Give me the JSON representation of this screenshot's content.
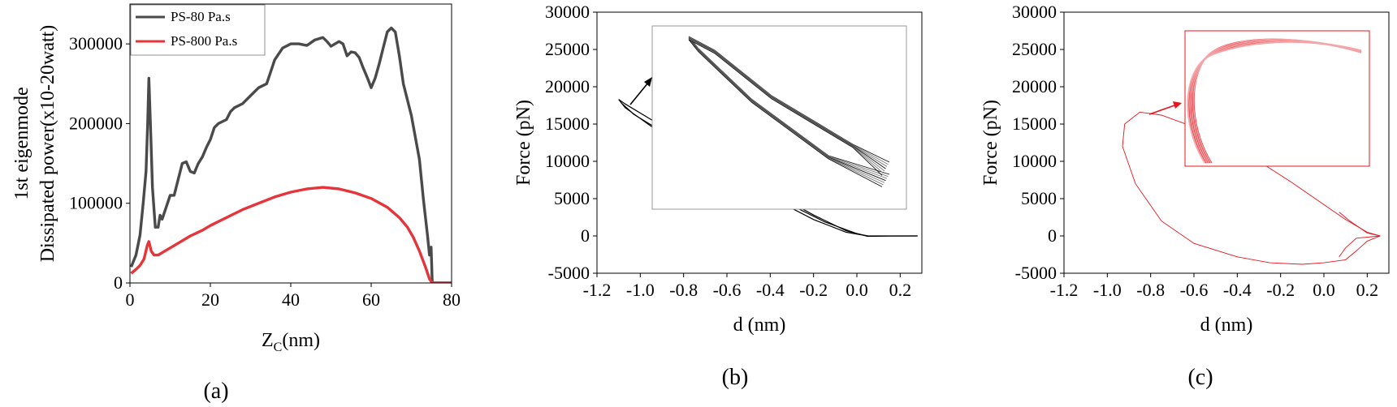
{
  "chart_data": [
    {
      "panel_label": "(a)",
      "type": "line",
      "xlabel": "Z",
      "xlabel_sub": "C",
      "xlabel_unit": "(nm)",
      "ylabel_lines": [
        "1st eigenmode",
        "Dissipated power(x10-20watt)"
      ],
      "xlim": [
        0,
        80
      ],
      "ylim": [
        0,
        350000
      ],
      "xticks": [
        0,
        20,
        40,
        60,
        80
      ],
      "xtick_labels": [
        "0",
        "20",
        "40",
        "60",
        "80"
      ],
      "yticks": [
        0,
        100000,
        200000,
        300000
      ],
      "ytick_labels": [
        "0",
        "100000",
        "200000",
        "300000"
      ],
      "legend_position": "top-left",
      "series": [
        {
          "name": "PS-80 Pa.s",
          "color": "#4a4a4a",
          "points": [
            [
              0.3,
              20000
            ],
            [
              1.5,
              35000
            ],
            [
              2.5,
              60000
            ],
            [
              3.3,
              100000
            ],
            [
              4,
              140000
            ],
            [
              4.4,
              200000
            ],
            [
              4.7,
              257000
            ],
            [
              5.1,
              200000
            ],
            [
              5.6,
              120000
            ],
            [
              6.3,
              70000
            ],
            [
              7,
              70000
            ],
            [
              7.5,
              85000
            ],
            [
              8,
              80000
            ],
            [
              9,
              95000
            ],
            [
              10,
              110000
            ],
            [
              11,
              110000
            ],
            [
              12,
              130000
            ],
            [
              13,
              150000
            ],
            [
              14,
              152000
            ],
            [
              15,
              140000
            ],
            [
              16,
              138000
            ],
            [
              17,
              150000
            ],
            [
              18,
              158000
            ],
            [
              19,
              170000
            ],
            [
              20,
              180000
            ],
            [
              21,
              195000
            ],
            [
              22,
              200000
            ],
            [
              24,
              205000
            ],
            [
              25,
              215000
            ],
            [
              26,
              220000
            ],
            [
              28,
              225000
            ],
            [
              30,
              235000
            ],
            [
              32,
              245000
            ],
            [
              34,
              250000
            ],
            [
              35,
              265000
            ],
            [
              36,
              280000
            ],
            [
              38,
              295000
            ],
            [
              40,
              300000
            ],
            [
              42,
              300000
            ],
            [
              44,
              298000
            ],
            [
              46,
              305000
            ],
            [
              48,
              308000
            ],
            [
              49,
              303000
            ],
            [
              50,
              297000
            ],
            [
              52,
              303000
            ],
            [
              53,
              300000
            ],
            [
              54,
              285000
            ],
            [
              55,
              290000
            ],
            [
              56,
              289000
            ],
            [
              57,
              283000
            ],
            [
              58,
              270000
            ],
            [
              59,
              258000
            ],
            [
              60,
              245000
            ],
            [
              61,
              257000
            ],
            [
              62,
              275000
            ],
            [
              63,
              295000
            ],
            [
              64,
              315000
            ],
            [
              65,
              320000
            ],
            [
              66,
              315000
            ],
            [
              67,
              285000
            ],
            [
              68,
              250000
            ],
            [
              70,
              210000
            ],
            [
              72,
              155000
            ],
            [
              73,
              105000
            ],
            [
              74,
              60000
            ],
            [
              74.5,
              35000
            ],
            [
              74.9,
              45000
            ],
            [
              75.2,
              0
            ],
            [
              80,
              0
            ]
          ]
        },
        {
          "name": "PS-800 Pa.s",
          "color": "#e5353a",
          "points": [
            [
              0.3,
              12000
            ],
            [
              1.5,
              17000
            ],
            [
              2.5,
              22000
            ],
            [
              3.5,
              30000
            ],
            [
              4.3,
              47000
            ],
            [
              4.7,
              52000
            ],
            [
              5.3,
              40000
            ],
            [
              6,
              35000
            ],
            [
              7,
              35000
            ],
            [
              8,
              38000
            ],
            [
              10,
              44000
            ],
            [
              12,
              50000
            ],
            [
              15,
              59000
            ],
            [
              18,
              66000
            ],
            [
              20,
              72000
            ],
            [
              24,
              82000
            ],
            [
              28,
              92000
            ],
            [
              32,
              100000
            ],
            [
              36,
              108000
            ],
            [
              40,
              114000
            ],
            [
              44,
              118000
            ],
            [
              48,
              120000
            ],
            [
              52,
              118000
            ],
            [
              56,
              113000
            ],
            [
              60,
              106000
            ],
            [
              64,
              95000
            ],
            [
              67,
              82000
            ],
            [
              69,
              70000
            ],
            [
              70.5,
              57000
            ],
            [
              72,
              40000
            ],
            [
              73.5,
              20000
            ],
            [
              74.5,
              5000
            ],
            [
              75.2,
              0
            ],
            [
              80,
              0
            ]
          ]
        }
      ]
    },
    {
      "panel_label": "(b)",
      "type": "line",
      "xlabel": "d (nm)",
      "ylabel": "Force (pN)",
      "xlim": [
        -1.2,
        0.3
      ],
      "ylim": [
        -5000,
        30000
      ],
      "xticks": [
        -1.2,
        -1.0,
        -0.8,
        -0.6,
        -0.4,
        -0.2,
        0.0,
        0.2
      ],
      "xtick_labels": [
        "-1.2",
        "-1.0",
        "-0.8",
        "-0.6",
        "-0.4",
        "-0.2",
        "0.0",
        "0.2"
      ],
      "yticks": [
        -5000,
        0,
        5000,
        10000,
        15000,
        20000,
        25000,
        30000
      ],
      "ytick_labels": [
        "-5000",
        "0",
        "5000",
        "10000",
        "15000",
        "20000",
        "25000",
        "30000"
      ],
      "line_color": "#000000",
      "inset_box_data": {
        "x": [
          -0.94,
          0.17
        ],
        "y": [
          3900,
          28800
        ]
      },
      "inset_color": "#9a9a9a",
      "series": [
        {
          "points": [
            [
              -1.1,
              18300
            ],
            [
              -1.07,
              17700
            ],
            [
              -0.95,
              15600
            ],
            [
              -0.8,
              13000
            ],
            [
              -0.6,
              9500
            ],
            [
              -0.4,
              6000
            ],
            [
              -0.2,
              2800
            ],
            [
              -0.05,
              700
            ],
            [
              0.05,
              -50
            ],
            [
              0.15,
              -10
            ],
            [
              0.28,
              0
            ]
          ]
        },
        {
          "points": [
            [
              -1.1,
              18300
            ],
            [
              -1.07,
              17200
            ],
            [
              -0.95,
              14700
            ],
            [
              -0.8,
              12000
            ],
            [
              -0.6,
              8600
            ],
            [
              -0.4,
              5200
            ],
            [
              -0.2,
              2200
            ],
            [
              -0.05,
              500
            ],
            [
              0.05,
              0
            ],
            [
              0.15,
              0
            ],
            [
              0.28,
              0
            ]
          ]
        },
        {
          "points": [
            [
              -1.09,
              17900
            ],
            [
              -1.03,
              16300
            ],
            [
              -0.9,
              14000
            ],
            [
              -0.75,
              11400
            ],
            [
              -0.55,
              8000
            ],
            [
              -0.35,
              4800
            ],
            [
              -0.15,
              1900
            ],
            [
              0,
              300
            ],
            [
              0.05,
              0
            ]
          ]
        }
      ]
    },
    {
      "panel_label": "(c)",
      "type": "line",
      "xlabel": "d (nm)",
      "ylabel": "Force (pN)",
      "xlim": [
        -1.2,
        0.3
      ],
      "ylim": [
        -5000,
        30000
      ],
      "xticks": [
        -1.2,
        -1.0,
        -0.8,
        -0.6,
        -0.4,
        -0.2,
        0.0,
        0.2
      ],
      "xtick_labels": [
        "-1.2",
        "-1.0",
        "-0.8",
        "-0.6",
        "-0.4",
        "-0.2",
        "0.0",
        "0.2"
      ],
      "yticks": [
        -5000,
        0,
        5000,
        10000,
        15000,
        20000,
        25000,
        30000
      ],
      "ytick_labels": [
        "-5000",
        "0",
        "5000",
        "10000",
        "15000",
        "20000",
        "25000",
        "30000"
      ],
      "line_color": "#e8141b",
      "inset_box_data": {
        "x": [
          -0.68,
          0.2
        ],
        "y": [
          9500,
          29300
        ]
      },
      "series": [
        {
          "points": [
            [
              0.26,
              0
            ],
            [
              0.2,
              -700
            ],
            [
              0.15,
              -2000
            ],
            [
              0.1,
              -3200
            ],
            [
              0,
              -3600
            ],
            [
              -0.1,
              -3800
            ],
            [
              -0.25,
              -3600
            ],
            [
              -0.4,
              -2800
            ],
            [
              -0.6,
              -1000
            ],
            [
              -0.75,
              2000
            ],
            [
              -0.87,
              7000
            ],
            [
              -0.93,
              12000
            ],
            [
              -0.92,
              15000
            ],
            [
              -0.85,
              16600
            ],
            [
              -0.75,
              16200
            ],
            [
              -0.6,
              14600
            ],
            [
              -0.45,
              12500
            ],
            [
              -0.3,
              10000
            ],
            [
              -0.15,
              7200
            ],
            [
              0,
              4200
            ],
            [
              0.1,
              2200
            ],
            [
              0.2,
              500
            ],
            [
              0.26,
              0
            ]
          ]
        },
        {
          "points": [
            [
              0.26,
              0
            ],
            [
              0.15,
              -300
            ],
            [
              0.1,
              -1600
            ],
            [
              0.07,
              -2800
            ]
          ]
        },
        {
          "points": [
            [
              0.26,
              0
            ],
            [
              0.2,
              400
            ],
            [
              0.12,
              2000
            ],
            [
              0.07,
              3200
            ]
          ]
        }
      ]
    }
  ]
}
